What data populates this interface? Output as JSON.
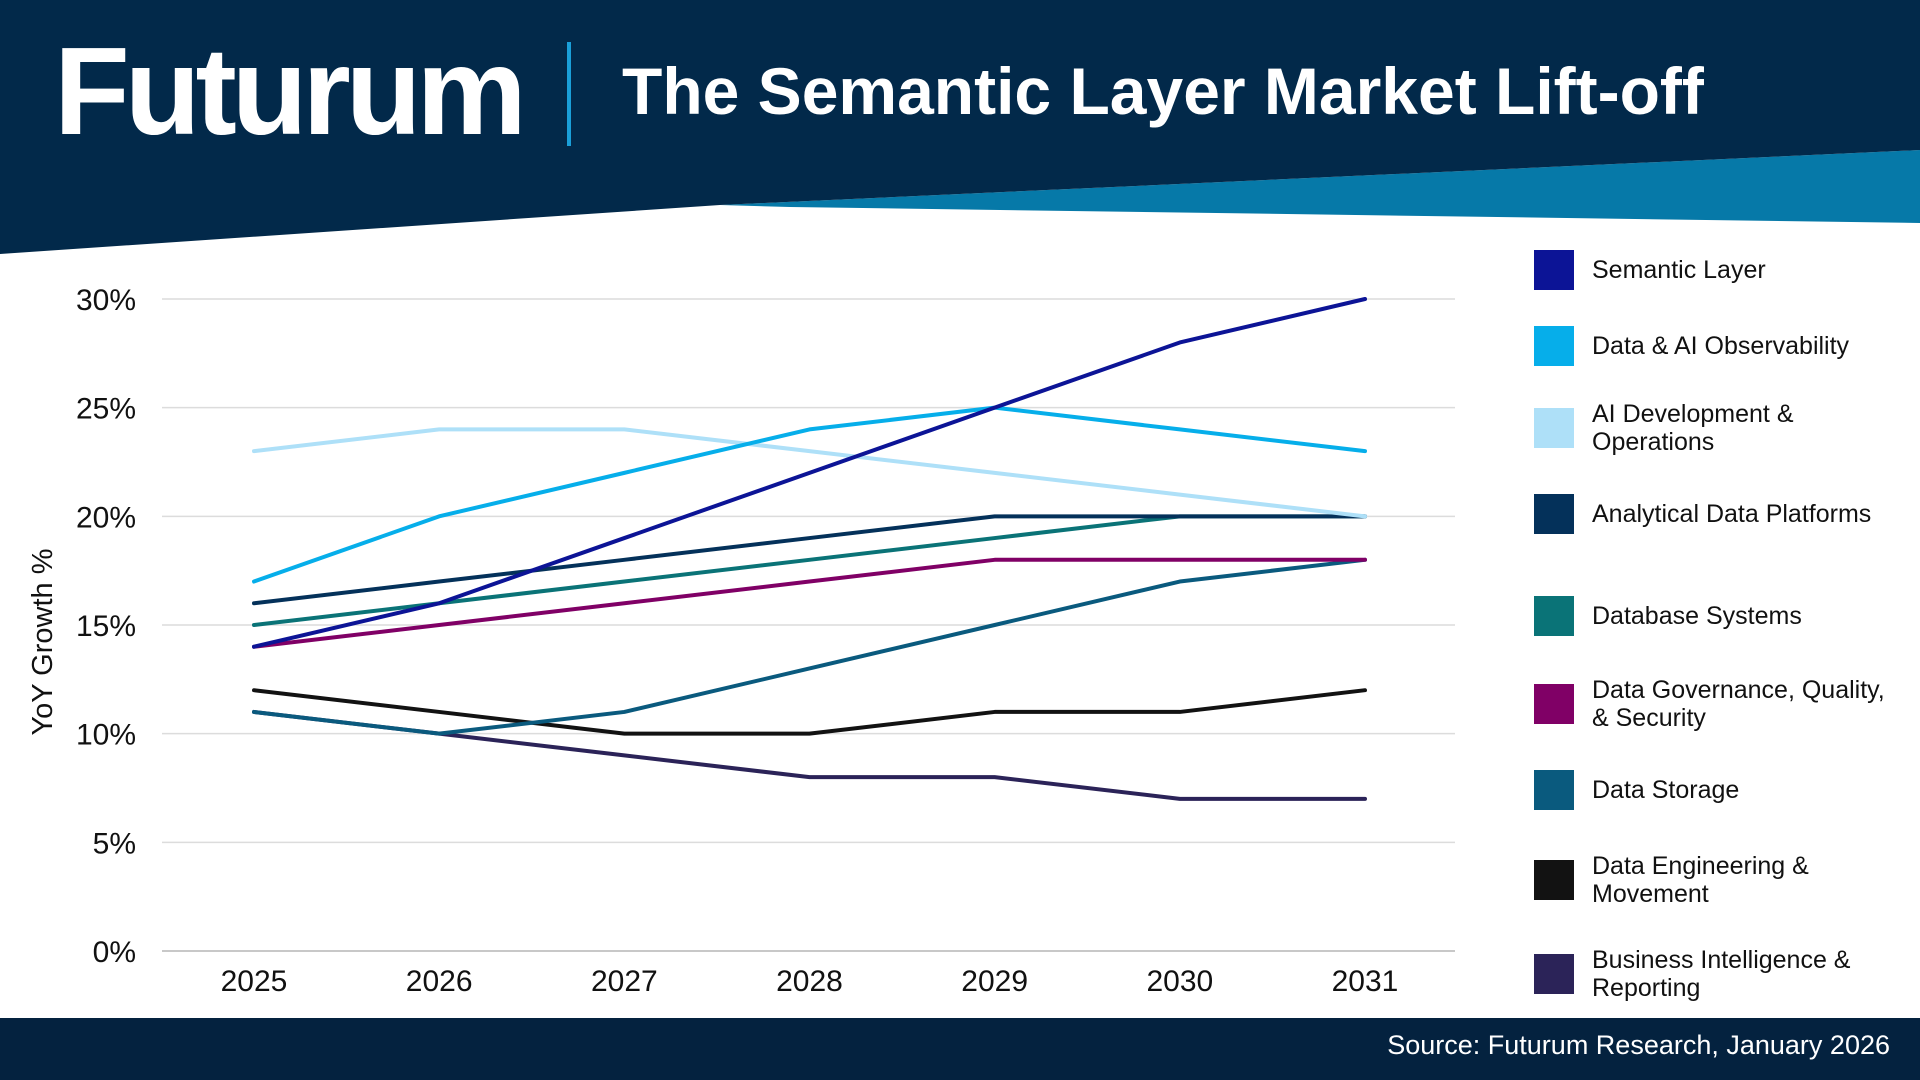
{
  "header": {
    "brand": "Futurum",
    "title": "The Semantic Layer Market Lift-off"
  },
  "footer": {
    "source": "Source: Futurum Research, January 2026"
  },
  "colors": {
    "header_bg": "#02294a",
    "header_accent": "#0679a8",
    "divider": "#1a9fd9",
    "footer_bg": "#04223f",
    "grid": "#dcdcdc"
  },
  "chart_data": {
    "type": "line",
    "title": "The Semantic Layer Market Lift-off",
    "xlabel": "",
    "ylabel": "YoY Growth %",
    "x": [
      "2025",
      "2026",
      "2027",
      "2028",
      "2029",
      "2030",
      "2031"
    ],
    "ylim": [
      0,
      30
    ],
    "yticks": [
      0,
      5,
      10,
      15,
      20,
      25,
      30
    ],
    "ytick_labels": [
      "0%",
      "5%",
      "10%",
      "15%",
      "20%",
      "25%",
      "30%"
    ],
    "grid": true,
    "legend_position": "right",
    "series": [
      {
        "name": "Semantic Layer",
        "color": "#0c1496",
        "values": [
          14,
          16,
          19,
          22,
          25,
          28,
          30
        ]
      },
      {
        "name": "Data & AI Observability",
        "color": "#06aeea",
        "values": [
          17,
          20,
          22,
          24,
          25,
          24,
          23
        ]
      },
      {
        "name": "AI Development & Operations",
        "color": "#aee0f8",
        "values": [
          23,
          24,
          24,
          23,
          22,
          21,
          20
        ]
      },
      {
        "name": "Analytical Data Platforms",
        "color": "#04315a",
        "values": [
          16,
          17,
          18,
          19,
          20,
          20,
          20
        ]
      },
      {
        "name": "Database Systems",
        "color": "#0a7377",
        "values": [
          15,
          16,
          17,
          18,
          19,
          20,
          20
        ]
      },
      {
        "name": "Data Governance, Quality, & Security",
        "color": "#800066",
        "values": [
          14,
          15,
          16,
          17,
          18,
          18,
          18
        ]
      },
      {
        "name": "Data Storage",
        "color": "#0a5a7e",
        "values": [
          11,
          10,
          11,
          13,
          15,
          17,
          18
        ]
      },
      {
        "name": "Data Engineering & Movement",
        "color": "#121212",
        "values": [
          12,
          11,
          10,
          10,
          11,
          11,
          12
        ]
      },
      {
        "name": "Business Intelligence & Reporting",
        "color": "#2b2358",
        "values": [
          11,
          10,
          9,
          8,
          8,
          7,
          7
        ]
      }
    ]
  }
}
